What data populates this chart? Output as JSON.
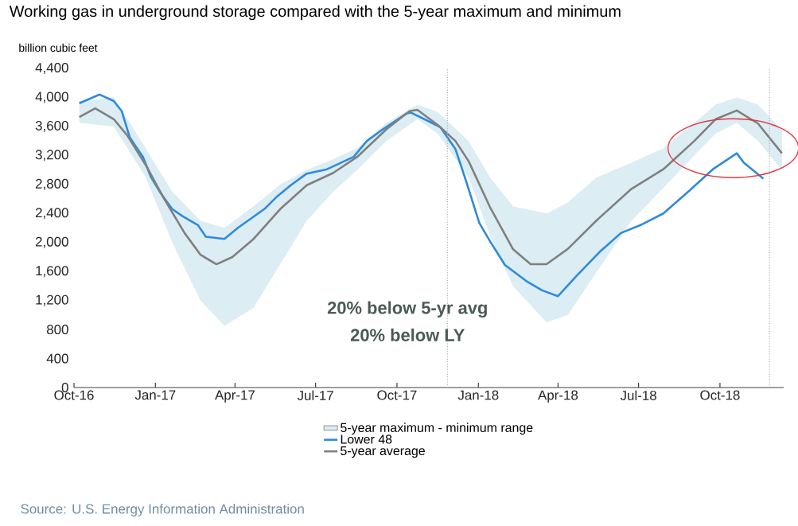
{
  "chart_data": {
    "type": "line",
    "title": "Working gas in underground  storage compared with the 5-year maximum and minimum",
    "ylabel": "billion cubic feet",
    "x": [
      "2016-10-07",
      "2016-10-30",
      "2016-11-15",
      "2016-11-24",
      "2016-12-03",
      "2016-12-09",
      "2016-12-18",
      "2016-12-27",
      "2017-01-07",
      "2017-01-20",
      "2017-02-01",
      "2017-02-18",
      "2017-02-27",
      "2017-03-20",
      "2017-04-04",
      "2017-05-04",
      "2017-05-19",
      "2017-06-03",
      "2017-06-21",
      "2017-07-14",
      "2017-08-13",
      "2017-08-28",
      "2017-09-15",
      "2017-10-12",
      "2017-10-17",
      "2017-11-06",
      "2017-11-19",
      "2017-12-06",
      "2017-12-18",
      "2018-01-02",
      "2018-01-16",
      "2018-01-31",
      "2018-02-24",
      "2018-03-14",
      "2018-04-01",
      "2018-04-22",
      "2018-05-18",
      "2018-06-11",
      "2018-07-05",
      "2018-07-29",
      "2018-08-27",
      "2018-09-23",
      "2018-10-20",
      "2018-10-28",
      "2018-11-19"
    ],
    "series": [
      {
        "name": "5-year maximum - minimum range",
        "type": "area",
        "color": "#dcedf3",
        "x": [
          "2016-10-07",
          "2016-11-15",
          "2016-12-21",
          "2017-01-20",
          "2017-02-21",
          "2017-03-20",
          "2017-04-22",
          "2017-05-22",
          "2017-06-21",
          "2017-07-21",
          "2017-08-17",
          "2017-09-19",
          "2017-10-24",
          "2017-11-16",
          "2017-12-21",
          "2018-01-14",
          "2018-02-09",
          "2018-03-19",
          "2018-04-12",
          "2018-05-15",
          "2018-06-23",
          "2018-07-29",
          "2018-09-02",
          "2018-09-26",
          "2018-10-20",
          "2018-11-13",
          "2018-12-10"
        ],
        "values": [
          null,
          null,
          null,
          null,
          null,
          null,
          null,
          null,
          null,
          null,
          null,
          null,
          null,
          null,
          null,
          null,
          null,
          null,
          null,
          null,
          null,
          null,
          null,
          null,
          null,
          null,
          null
        ],
        "upper": [
          3950,
          4000,
          3300,
          2700,
          2300,
          2200,
          2500,
          2800,
          3000,
          3150,
          3300,
          3650,
          3900,
          3800,
          3400,
          2900,
          2500,
          2400,
          2550,
          2900,
          3100,
          3300,
          3650,
          3900,
          4000,
          3900,
          3550
        ],
        "lower": [
          3650,
          3600,
          2900,
          2000,
          1200,
          850,
          1100,
          1700,
          2300,
          2700,
          3000,
          3400,
          3700,
          3500,
          2900,
          2100,
          1400,
          900,
          1000,
          1600,
          2300,
          2750,
          3200,
          3500,
          3650,
          3400,
          3000
        ]
      },
      {
        "name": "Lower 48",
        "color": "#2e8bdb",
        "values": [
          3920,
          4040,
          3950,
          3810,
          3450,
          3340,
          3180,
          2900,
          2680,
          2460,
          2360,
          2240,
          2080,
          2050,
          2200,
          2460,
          2640,
          2790,
          2950,
          3010,
          3180,
          3400,
          3560,
          3780,
          3790,
          3670,
          3590,
          3290,
          2850,
          2270,
          1980,
          1690,
          1470,
          1340,
          1260,
          1540,
          1870,
          2130,
          2250,
          2400,
          2710,
          3010,
          3230,
          3100,
          2880
        ]
      },
      {
        "name": "5-year average",
        "color": "#808080",
        "x": [
          "2016-10-07",
          "2016-10-25",
          "2016-11-15",
          "2016-11-30",
          "2016-12-21",
          "2017-01-11",
          "2017-02-03",
          "2017-02-21",
          "2017-03-11",
          "2017-03-29",
          "2017-04-22",
          "2017-05-22",
          "2017-06-21",
          "2017-07-21",
          "2017-08-17",
          "2017-09-19",
          "2017-10-15",
          "2017-10-24",
          "2017-11-16",
          "2017-12-06",
          "2017-12-21",
          "2018-01-14",
          "2018-02-09",
          "2018-03-01",
          "2018-03-19",
          "2018-04-12",
          "2018-05-15",
          "2018-06-23",
          "2018-07-29",
          "2018-09-02",
          "2018-09-26",
          "2018-10-20",
          "2018-11-13",
          "2018-12-10"
        ],
        "values": [
          3730,
          3850,
          3700,
          3480,
          3070,
          2600,
          2130,
          1830,
          1700,
          1800,
          2050,
          2460,
          2790,
          2960,
          3180,
          3560,
          3810,
          3830,
          3620,
          3400,
          3120,
          2490,
          1910,
          1700,
          1700,
          1910,
          2310,
          2740,
          3010,
          3400,
          3700,
          3820,
          3640,
          3230
        ]
      }
    ],
    "xlim": [
      "2016-10-01",
      "2018-12-12"
    ],
    "xticks": [
      {
        "value": "2016-10-01",
        "label": "Oct-16"
      },
      {
        "value": "2017-01-01",
        "label": "Jan-17"
      },
      {
        "value": "2017-04-01",
        "label": "Apr-17"
      },
      {
        "value": "2017-07-01",
        "label": "Jul-17"
      },
      {
        "value": "2017-10-01",
        "label": "Oct-17"
      },
      {
        "value": "2018-01-01",
        "label": "Jan-18"
      },
      {
        "value": "2018-04-01",
        "label": "Apr-18"
      },
      {
        "value": "2018-07-01",
        "label": "Jul-18"
      },
      {
        "value": "2018-10-01",
        "label": "Oct-18"
      }
    ],
    "ylim": [
      0,
      4400
    ],
    "yticks": [
      0,
      400,
      800,
      {
        "value": 1200,
        "label": "1,200"
      },
      {
        "value": 1600,
        "label": "1,600"
      },
      {
        "value": 2000,
        "label": "2,000"
      },
      {
        "value": 2400,
        "label": "2,400"
      },
      {
        "value": 2800,
        "label": "2,800"
      },
      {
        "value": 3200,
        "label": "3,200"
      },
      {
        "value": 3600,
        "label": "3,600"
      },
      {
        "value": 4000,
        "label": "4,000"
      },
      {
        "value": 4400,
        "label": "4,400"
      }
    ],
    "ref_lines": [
      {
        "axis": "x",
        "value": "2017-11-27",
        "color": "#b0b0b0",
        "line_style": "dotted"
      },
      {
        "axis": "x",
        "value": "2018-11-26",
        "color": "#b0b0b0",
        "line_style": "dotted"
      }
    ],
    "annotations": [
      "20% below 5-yr avg",
      "20% below LY",
      "Source:  U.S. Energy Information Administration"
    ],
    "legend": "bottom",
    "grid": false
  }
}
